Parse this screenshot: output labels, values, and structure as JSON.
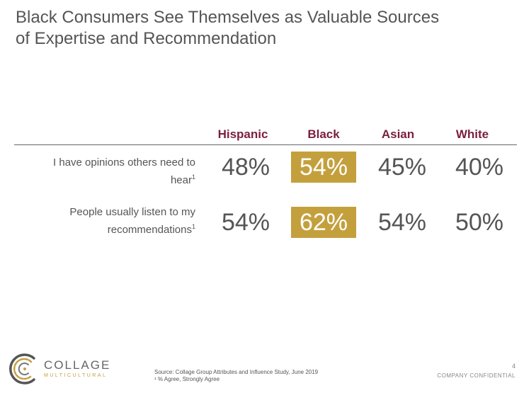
{
  "title": {
    "line1": "Black Consumers See Themselves as Valuable Sources",
    "line2": "of Expertise and Recommendation"
  },
  "table": {
    "columns": [
      "Hispanic",
      "Black",
      "Asian",
      "White"
    ],
    "rows": [
      {
        "label_line1": "I have opinions others need to",
        "label_line2": "hear",
        "footnote": "1",
        "values": [
          "48%",
          "54%",
          "45%",
          "40%"
        ]
      },
      {
        "label_line1": "People usually listen to my",
        "label_line2": "recommendations",
        "footnote": "1",
        "values": [
          "54%",
          "62%",
          "54%",
          "50%"
        ]
      }
    ],
    "highlight_column": "Black",
    "highlight_color": "#c4a03d",
    "header_color": "#7a1f3d"
  },
  "footer": {
    "brand_name": "COLLAGE",
    "brand_sub": "MULTICULTURAL",
    "source_line1": "Source: Collage Group Attributes and Influence Study, June 2019",
    "source_line2": "¹ % Agree, Strongly Agree",
    "page_number": "4",
    "confidential": "COMPANY CONFIDENTIAL"
  }
}
